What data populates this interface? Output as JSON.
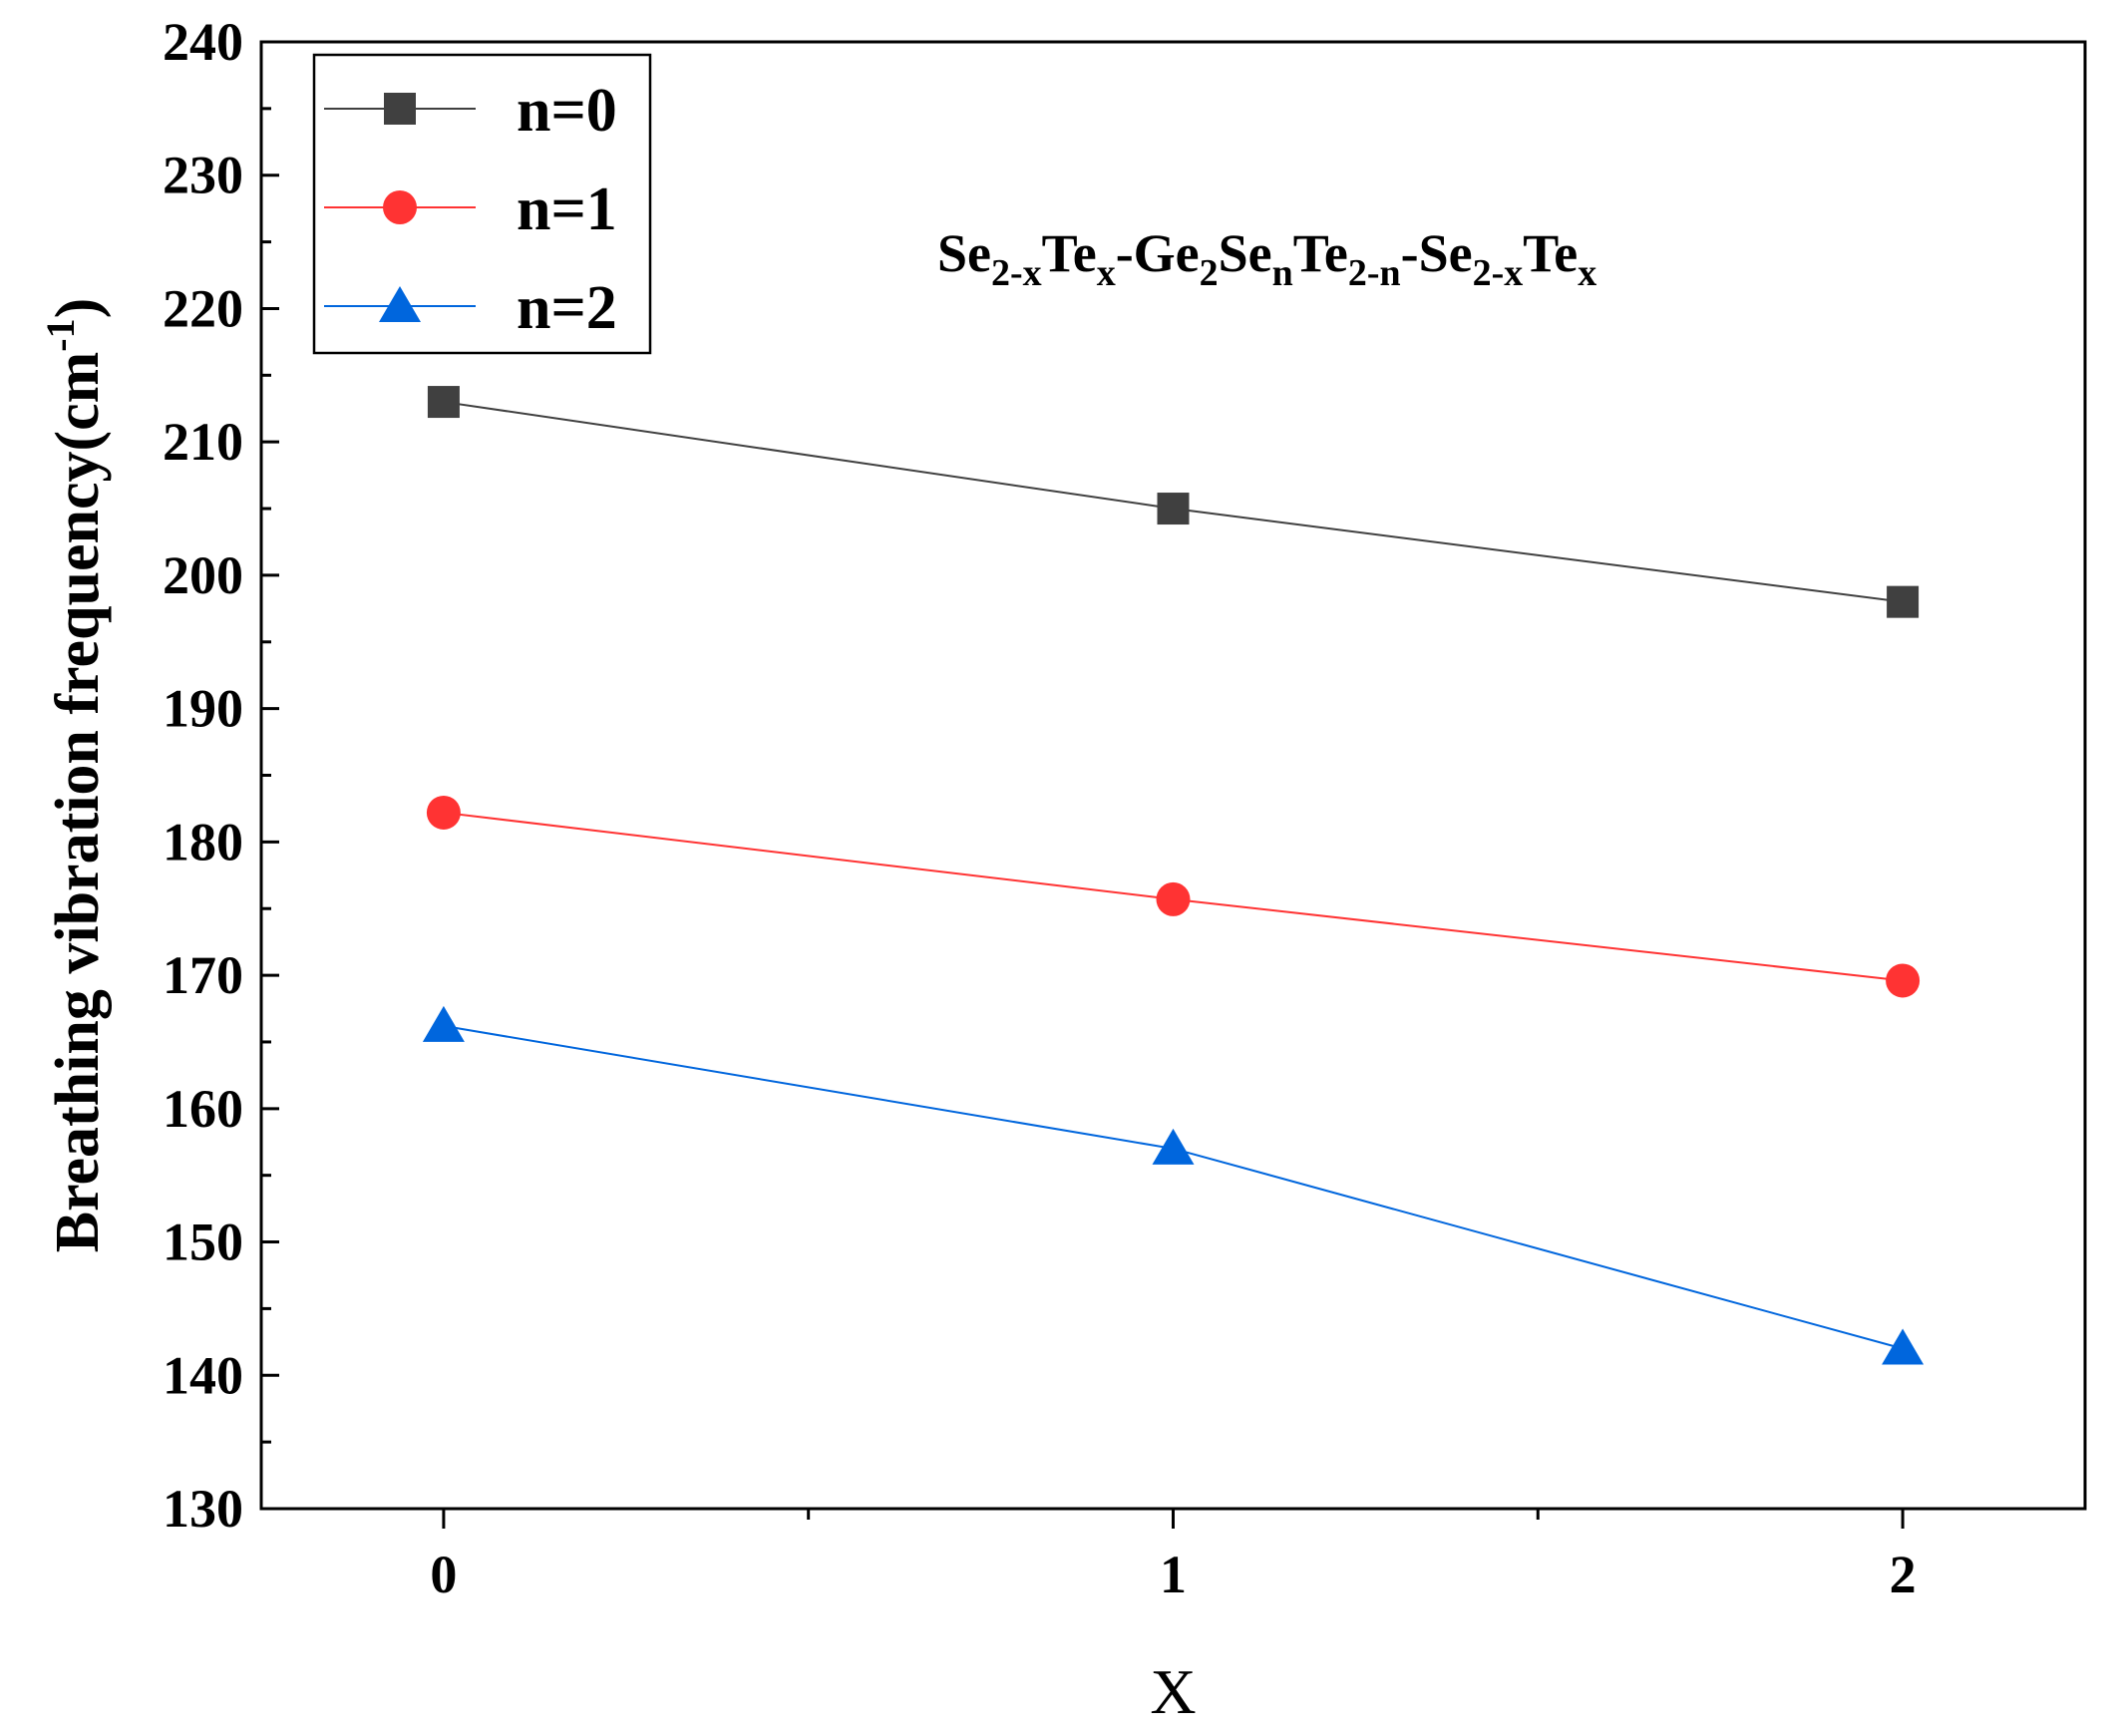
{
  "chart_data": {
    "type": "line",
    "title": "",
    "xlabel": "X",
    "ylabel": "Breathing vibration frequency(cm",
    "ylabel_superscript": "-1",
    "ylabel_close": ")",
    "x": [
      0,
      1,
      2
    ],
    "x_ticks": [
      "0",
      "1",
      "2"
    ],
    "xlim": [
      -0.25,
      2.25
    ],
    "ylim": [
      130,
      240
    ],
    "y_ticks": [
      "130",
      "140",
      "150",
      "160",
      "170",
      "180",
      "190",
      "200",
      "210",
      "220",
      "230",
      "240"
    ],
    "grid": false,
    "legend_position": "top-left",
    "series": [
      {
        "name": "n=0",
        "values": [
          213,
          205,
          198
        ],
        "color": "#404040",
        "marker": "square"
      },
      {
        "name": "n=1",
        "values": [
          182.2,
          175.7,
          169.6
        ],
        "color": "#ff3333",
        "marker": "circle"
      },
      {
        "name": "n=2",
        "values": [
          166.2,
          157,
          142
        ],
        "color": "#0066dd",
        "marker": "triangle"
      }
    ],
    "annotation": {
      "parts": [
        {
          "text": "Se",
          "sub": false
        },
        {
          "text": "2-x",
          "sub": true
        },
        {
          "text": "Te",
          "sub": false
        },
        {
          "text": "x",
          "sub": true
        },
        {
          "text": "-Ge",
          "sub": false
        },
        {
          "text": "2",
          "sub": true
        },
        {
          "text": "Se",
          "sub": false
        },
        {
          "text": "n",
          "sub": true
        },
        {
          "text": "Te",
          "sub": false
        },
        {
          "text": "2-n",
          "sub": true
        },
        {
          "text": "-Se",
          "sub": false
        },
        {
          "text": "2-x",
          "sub": true
        },
        {
          "text": "Te",
          "sub": false
        },
        {
          "text": "x",
          "sub": true
        }
      ]
    }
  }
}
